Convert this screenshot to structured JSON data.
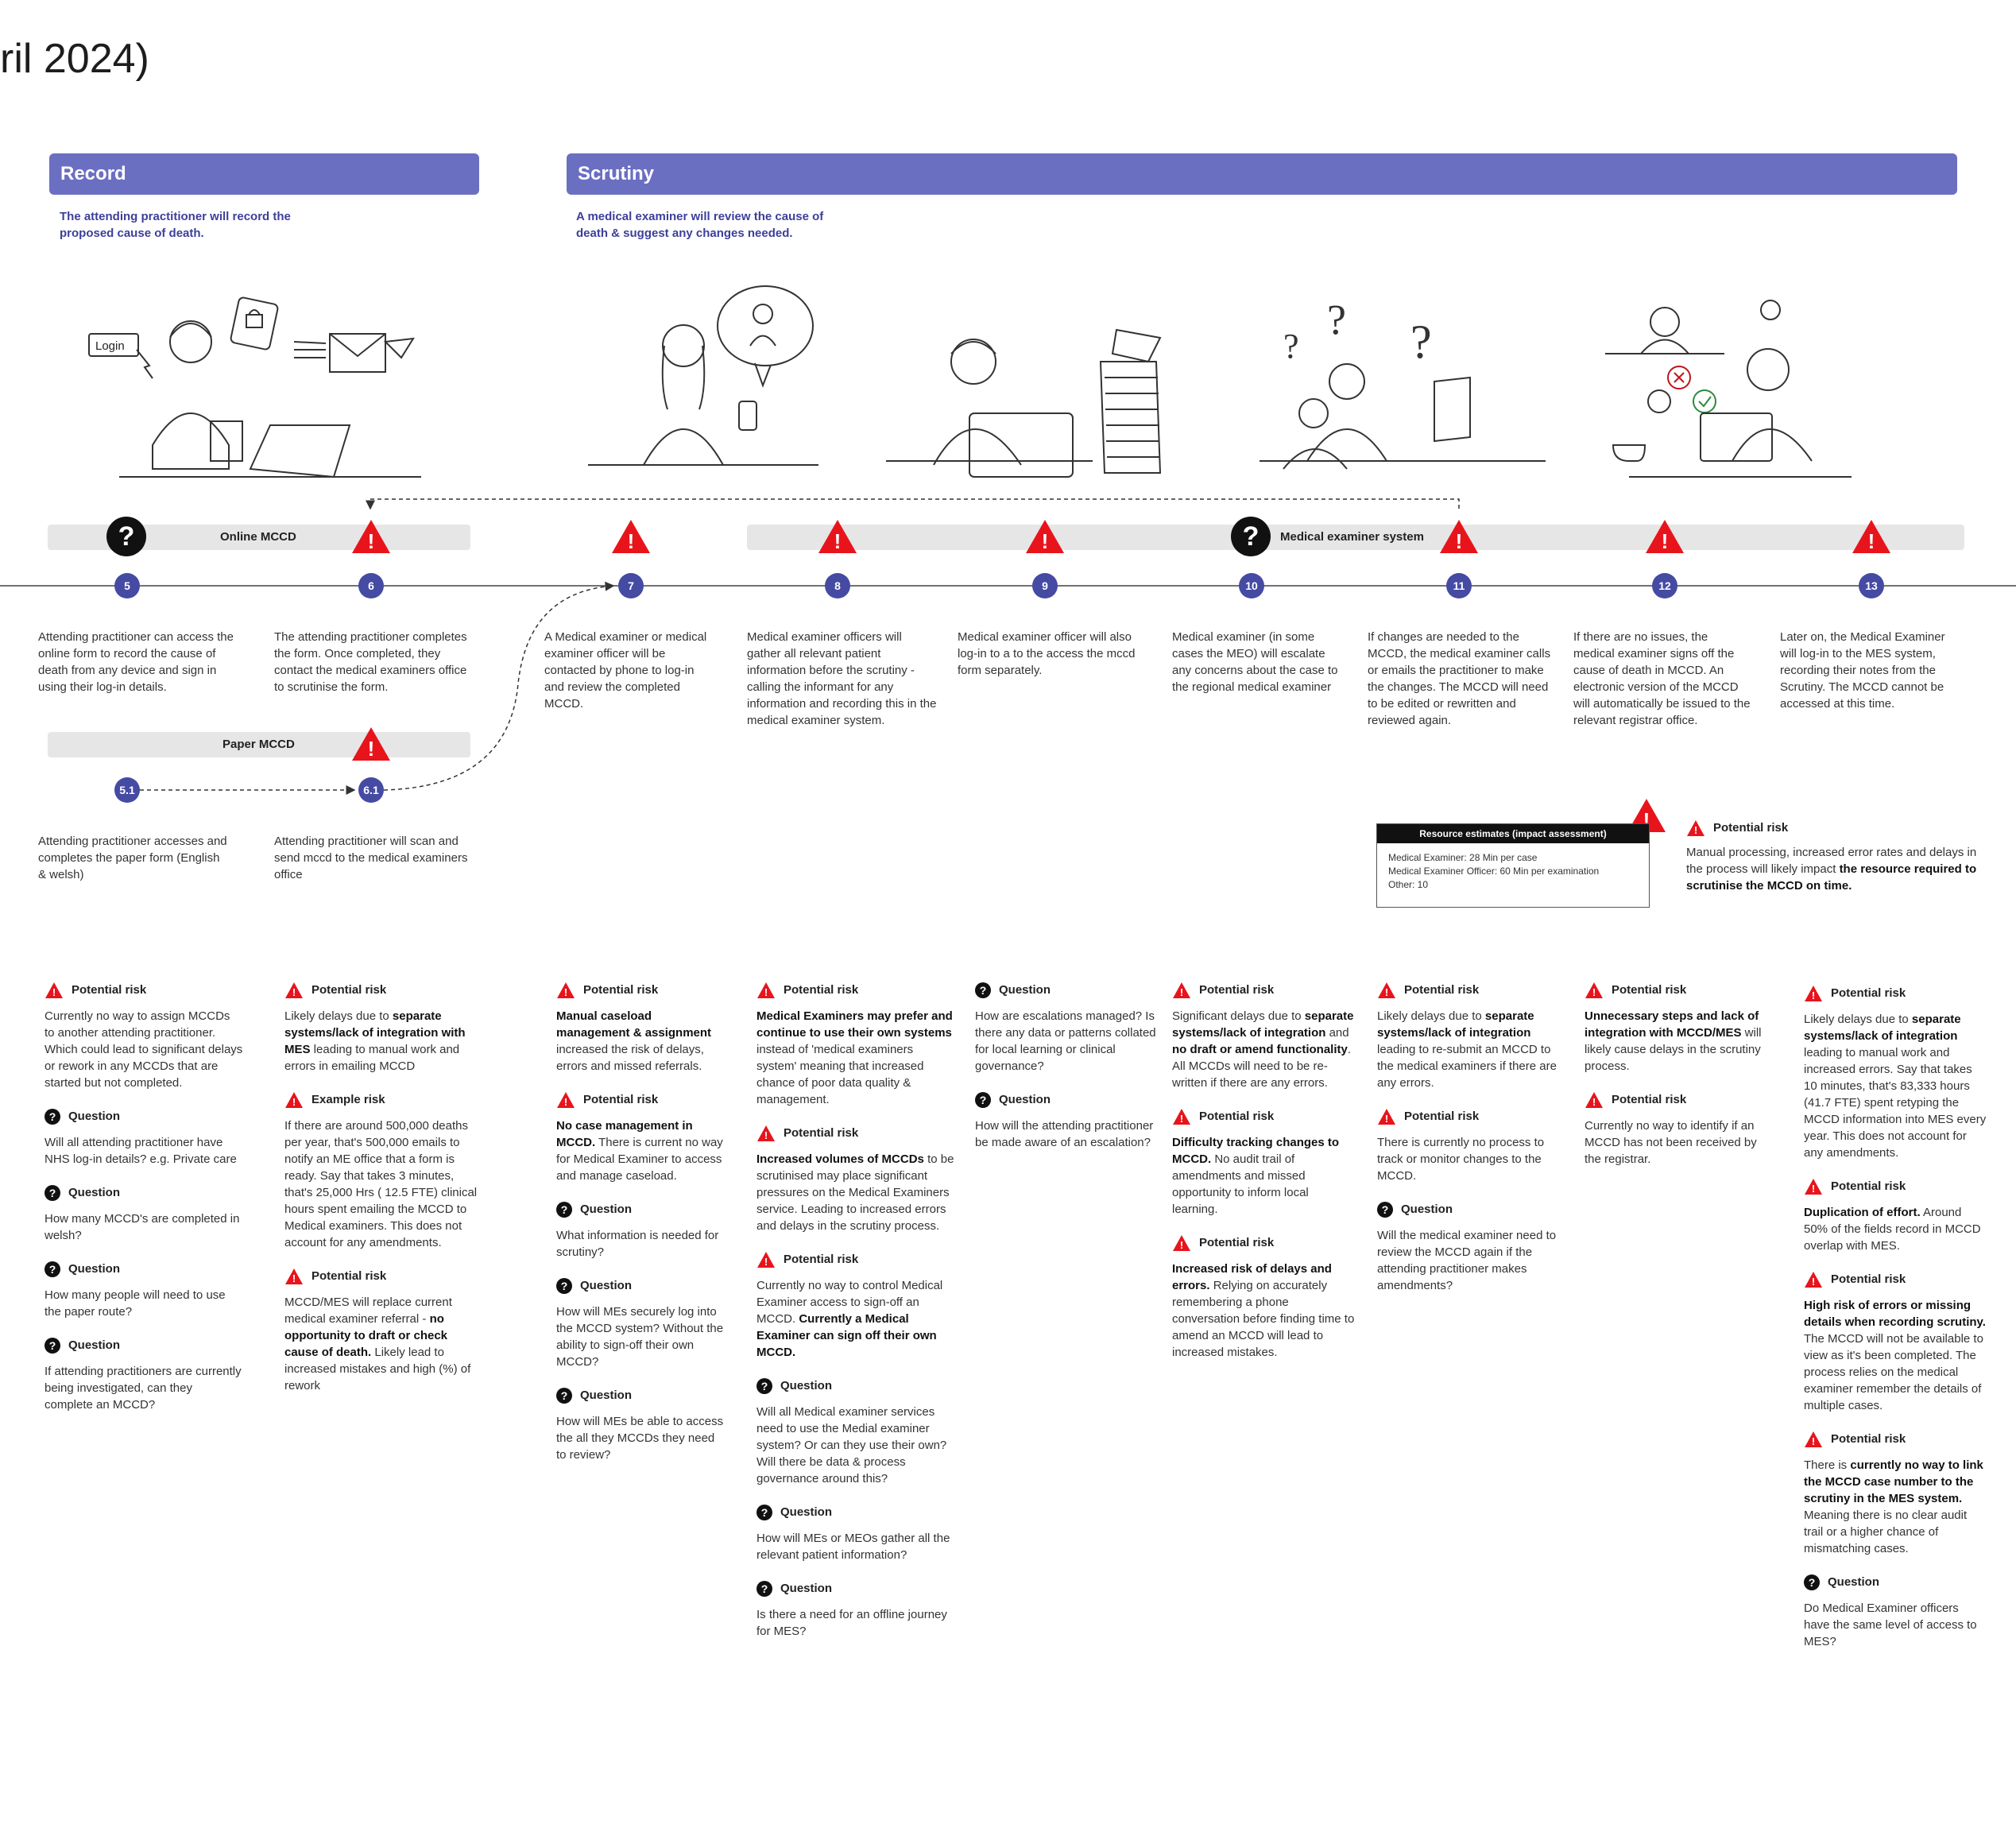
{
  "page_title": "ril 2024)",
  "phases": [
    {
      "title": "Record",
      "description": "The attending practitioner will record the proposed cause of death."
    },
    {
      "title": "Scrutiny",
      "description": "A medical examiner will review the cause of death & suggest any changes needed."
    }
  ],
  "illustrations": {
    "login": "Login"
  },
  "bars": {
    "online_mccd": "Online MCCD",
    "paper_mccd": "Paper MCCD",
    "medical_examiner_system": "Medical examiner system"
  },
  "icons": {
    "question_glyph": "?",
    "warning_glyph": "!",
    "warning_color": "#e8141c",
    "node_color": "#454aa3",
    "phase_color": "#6b6fc2"
  },
  "steps": [
    {
      "num": "5",
      "text": "Attending practitioner can access the online form to record the cause of death from any device and sign in using their log-in details."
    },
    {
      "num": "6",
      "text": "The attending practitioner completes the form. Once completed, they contact the medical examiners office to scrutinise the form."
    },
    {
      "num": "7",
      "text": "A Medical examiner or medical examiner officer will be contacted by phone to log-in and review the completed MCCD."
    },
    {
      "num": "8",
      "text": "Medical examiner officers will gather all relevant patient information before the scrutiny - calling the informant for any information and recording this in the medical examiner system."
    },
    {
      "num": "9",
      "text": "Medical examiner officer will also log-in to a to the access the mccd form separately."
    },
    {
      "num": "10",
      "text": "Medical examiner (in some cases the MEO) will escalate any concerns about the case to the regional medical examiner"
    },
    {
      "num": "11",
      "text": "If changes are needed to the MCCD, the medical examiner calls or emails the practitioner to make the changes. The MCCD will need to be edited or rewritten and reviewed again."
    },
    {
      "num": "12",
      "text": "If there are no issues, the medical examiner signs off the cause of death in MCCD. An electronic version of the MCCD will automatically be issued to the relevant registrar office."
    },
    {
      "num": "13",
      "text": "Later on, the Medical Examiner will log-in to the MES system, recording their notes from the Scrutiny. The MCCD cannot be accessed at this time."
    },
    {
      "num": "5.1",
      "text": "Attending practitioner accesses and completes the paper form (English & welsh)"
    },
    {
      "num": "6.1",
      "text": "Attending practitioner will scan and send mccd to the medical examiners office"
    }
  ],
  "resource_estimates": {
    "title": "Resource estimates (impact assessment)",
    "lines": [
      "Medical Examiner: 28 Min per case",
      "Medical Examiner Officer: 60 Min per examination",
      "Other: 10"
    ]
  },
  "side_risk": {
    "head": "Potential risk",
    "text": "Manual processing, increased error rates and delays in the process will likely impact ",
    "bold": "the resource required to scrutinise the MCCD on time."
  },
  "notes": {
    "c1": [
      {
        "type": "risk",
        "head": "Potential risk",
        "html": "Currently no way to assign MCCDs to another attending practitioner. Which could lead to significant delays or rework in any MCCDs that are started but not completed."
      },
      {
        "type": "question",
        "head": "Question",
        "html": "Will all attending practitioner have NHS log-in details? e.g. Private care"
      },
      {
        "type": "question",
        "head": "Question",
        "html": "How many MCCD's are completed in welsh?"
      },
      {
        "type": "question",
        "head": "Question",
        "html": "How many people will need to use the paper route?"
      },
      {
        "type": "question",
        "head": "Question",
        "html": "If attending practitioners are currently being investigated, can they complete an MCCD?"
      }
    ],
    "c2": [
      {
        "type": "risk",
        "head": "Potential risk",
        "html": "Likely delays due to <b>separate systems/lack of integration with MES</b> leading to manual work and errors in emailing MCCD"
      },
      {
        "type": "risk",
        "head": "Example risk",
        "html": "If there are around 500,000 deaths per year, that's 500,000 emails to notify an ME office that a form is ready. Say that takes 3 minutes, that's 25,000 Hrs ( 12.5 FTE) clinical hours spent emailing the MCCD to Medical examiners. This does not account for any amendments."
      },
      {
        "type": "risk",
        "head": "Potential risk",
        "html": "MCCD/MES will replace current medical examiner referral - <b>no opportunity to draft or check cause of death.</b> Likely lead to increased mistakes and high (%) of rework"
      }
    ],
    "c3": [
      {
        "type": "risk",
        "head": "Potential risk",
        "html": "<b>Manual caseload management &amp; assignment</b> increased the risk of delays, errors and missed referrals."
      },
      {
        "type": "risk",
        "head": "Potential risk",
        "html": "<b>No case management in MCCD.</b> There is current no way for Medical Examiner to access and manage caseload."
      },
      {
        "type": "question",
        "head": "Question",
        "html": "What information is needed for scrutiny?"
      },
      {
        "type": "question",
        "head": "Question",
        "html": "How will MEs securely log into the MCCD system? Without the ability to sign-off their own MCCD?"
      },
      {
        "type": "question",
        "head": "Question",
        "html": "How will MEs be able to access the all they MCCDs they need to review?"
      }
    ],
    "c4": [
      {
        "type": "risk",
        "head": "Potential risk",
        "html": "<b>Medical Examiners may prefer and continue to use their own systems</b> instead of 'medical examiners system' meaning that increased chance of poor data quality &amp; management."
      },
      {
        "type": "risk",
        "head": "Potential risk",
        "html": "<b>Increased volumes of MCCDs</b> to be scrutinised may place significant pressures on the Medical Examiners service. Leading to increased errors and delays in the scrutiny process."
      },
      {
        "type": "risk",
        "head": "Potential risk",
        "html": "Currently no way to control Medical Examiner access to sign-off an MCCD. <b>Currently a Medical Examiner can sign off their own MCCD.</b>"
      },
      {
        "type": "question",
        "head": "Question",
        "html": "Will all Medical examiner services need to use the Medial examiner system? Or can they use their own? Will there be data &amp; process governance around this?"
      },
      {
        "type": "question",
        "head": "Question",
        "html": "How will MEs or MEOs gather all the relevant patient information?"
      },
      {
        "type": "question",
        "head": "Question",
        "html": "Is there a need for an offline journey for MES?"
      }
    ],
    "c5": [
      {
        "type": "question",
        "head": "Question",
        "html": "How are escalations managed? Is there any data or patterns collated for local learning or clinical governance?"
      },
      {
        "type": "question",
        "head": "Question",
        "html": "How will the attending practitioner be made aware of an escalation?"
      }
    ],
    "c6": [
      {
        "type": "risk",
        "head": "Potential risk",
        "html": "Significant delays due to <b>separate systems/lack of integration</b> and <b>no draft or amend functionality</b>. All MCCDs will need to be re-written if there are any errors."
      },
      {
        "type": "risk",
        "head": "Potential risk",
        "html": "<b>Difficulty tracking changes to MCCD.</b> No audit trail of amendments and missed opportunity to inform local learning."
      },
      {
        "type": "risk",
        "head": "Potential risk",
        "html": "<b>Increased risk of delays and errors.</b> Relying on accurately remembering a phone conversation before finding time to amend an MCCD will lead to increased mistakes."
      }
    ],
    "c7": [
      {
        "type": "risk",
        "head": "Potential risk",
        "html": "Likely delays due to <b>separate systems/lack of integration</b> leading to re-submit an MCCD to the medical examiners if there are any errors."
      },
      {
        "type": "risk",
        "head": "Potential risk",
        "html": "There is currently no process to track or monitor changes to the MCCD."
      },
      {
        "type": "question",
        "head": "Question",
        "html": "Will the medical examiner need to review the MCCD again if the attending practitioner makes amendments?"
      }
    ],
    "c8": [
      {
        "type": "risk",
        "head": "Potential risk",
        "html": "<b>Unnecessary steps and lack of integration with MCCD/MES</b> will likely cause delays in the scrutiny process."
      },
      {
        "type": "risk",
        "head": "Potential risk",
        "html": "Currently no way to identify if an MCCD has not been received by the registrar."
      }
    ],
    "c9": [
      {
        "type": "risk",
        "head": "Potential risk",
        "html": "Likely delays due to <b>separate systems/lack of integration</b> leading to manual work and increased errors. Say that takes 10 minutes, that's 83,333 hours (41.7 FTE)  spent retyping the MCCD information into MES every year. This does not account for any amendments."
      },
      {
        "type": "risk",
        "head": "Potential risk",
        "html": "<b>Duplication of effort.</b> Around 50% of the fields record in MCCD overlap with MES."
      },
      {
        "type": "risk",
        "head": "Potential risk",
        "html": "<b>High risk of errors or missing details when recording scrutiny.</b> The MCCD will not be available to view as it's been completed. The process relies on the medical examiner remember the details of multiple cases."
      },
      {
        "type": "risk",
        "head": "Potential risk",
        "html": "There is <b>currently no way to link the MCCD case number to the scrutiny in the MES system.</b> Meaning there is no clear audit trail or a higher chance of mismatching cases."
      },
      {
        "type": "question",
        "head": "Question",
        "html": "Do Medical Examiner officers have the same level of access to MES?"
      }
    ]
  }
}
